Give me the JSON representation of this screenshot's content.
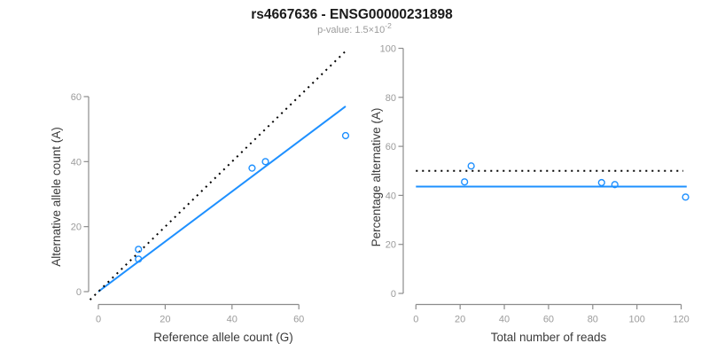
{
  "figure": {
    "title": "rs4667636 - ENSG00000231898",
    "subtitle_prefix": "p-value: 1.5×10",
    "subtitle_exponent": "-2"
  },
  "colors": {
    "fit_line": "#1E90FF",
    "reference_line": "#000000",
    "point_stroke": "#1E90FF",
    "axis_line": "#8c8c8c",
    "tick_label": "#9b9b9b",
    "axis_title": "#3a3a3a",
    "subtitle": "#9b9b9b",
    "title": "#1a1a1a"
  },
  "chart_data": [
    {
      "type": "scatter",
      "title": "",
      "xlabel": "Reference allele count (G)",
      "ylabel": "Alternative allele count (A)",
      "xticks": [
        0,
        20,
        40,
        60
      ],
      "yticks": [
        0,
        20,
        40,
        60
      ],
      "xlim": [
        -3,
        77.5
      ],
      "ylim": [
        -3,
        77.5
      ],
      "grid": false,
      "legend": "none",
      "points": [
        {
          "x": 12,
          "y": 10
        },
        {
          "x": 12,
          "y": 13
        },
        {
          "x": 46,
          "y": 38
        },
        {
          "x": 50,
          "y": 40
        },
        {
          "x": 74,
          "y": 48
        }
      ],
      "lines": [
        {
          "name": "fitted-allelic-ratio-line",
          "style": "solid",
          "color": "#1E90FF",
          "x": [
            0,
            74
          ],
          "y": [
            0,
            57
          ]
        },
        {
          "name": "identity-line",
          "style": "dotted",
          "color": "#000000",
          "x": [
            -2.5,
            74
          ],
          "y": [
            -2.5,
            74
          ]
        }
      ]
    },
    {
      "type": "scatter",
      "title": "",
      "xlabel": "Total number of reads",
      "ylabel": "Percentage alternative (A)",
      "xticks": [
        0,
        20,
        40,
        60,
        80,
        100,
        120
      ],
      "yticks": [
        0,
        20,
        40,
        60,
        80,
        100
      ],
      "xlim": [
        -5,
        127.5
      ],
      "ylim": [
        0,
        100
      ],
      "grid": false,
      "legend": "none",
      "points": [
        {
          "x": 22,
          "y": 45.5
        },
        {
          "x": 25,
          "y": 52
        },
        {
          "x": 84,
          "y": 45.2
        },
        {
          "x": 90,
          "y": 44.4
        },
        {
          "x": 122,
          "y": 39.3
        }
      ],
      "lines": [
        {
          "name": "fitted-percentage-line",
          "style": "solid",
          "color": "#1E90FF",
          "x": [
            0,
            122.5
          ],
          "y": [
            43.6,
            43.6
          ]
        },
        {
          "name": "expected-50-percent-line",
          "style": "dotted",
          "color": "#000000",
          "x": [
            0,
            121
          ],
          "y": [
            50,
            50
          ]
        }
      ]
    }
  ]
}
